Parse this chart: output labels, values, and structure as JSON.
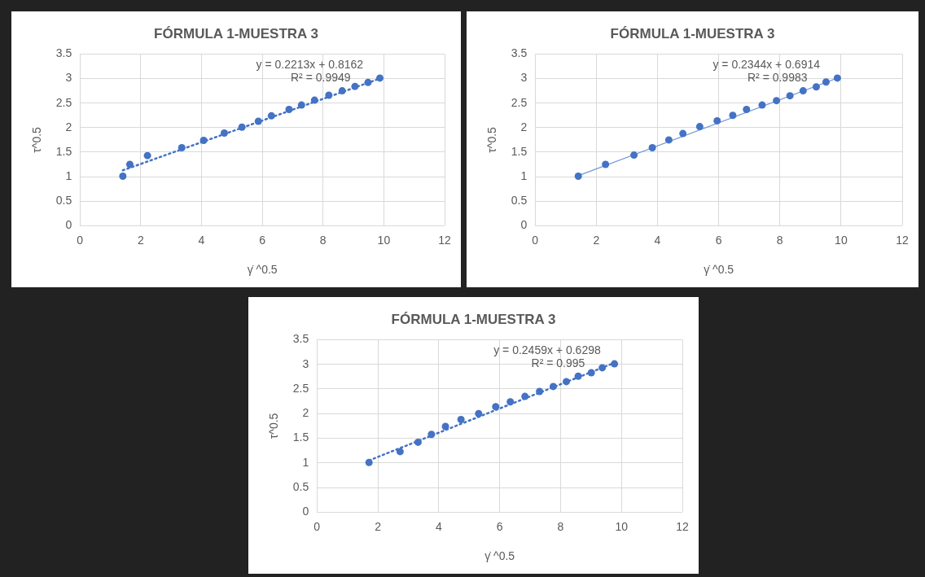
{
  "chart_data": [
    {
      "type": "scatter",
      "title": "FÓRMULA 1-MUESTRA 3",
      "xlabel": "γ̇ ^0.5",
      "ylabel": "τ^0.5",
      "xlim": [
        0,
        12
      ],
      "xticks": [
        0,
        2,
        4,
        6,
        8,
        10,
        12
      ],
      "ylim": [
        0,
        3.5
      ],
      "yticks": [
        0,
        0.5,
        1,
        1.5,
        2,
        2.5,
        3,
        3.5
      ],
      "grid": true,
      "marker": "circle",
      "annotations": [
        "y = 0.2213x + 0.8162",
        "R² = 0.9949"
      ],
      "series": [
        {
          "type": "scatter",
          "color": "#4472c4",
          "x": [
            1.41,
            1.64,
            2.22,
            3.35,
            4.07,
            4.75,
            5.33,
            5.87,
            6.3,
            6.88,
            7.29,
            7.72,
            8.19,
            8.63,
            9.05,
            9.48,
            9.87
          ],
          "values": [
            1.01,
            1.25,
            1.43,
            1.59,
            1.74,
            1.89,
            2.01,
            2.13,
            2.24,
            2.37,
            2.46,
            2.56,
            2.66,
            2.75,
            2.84,
            2.92,
            3.01
          ]
        },
        {
          "type": "line",
          "color": "#4472c4",
          "line_style": "dotted",
          "marker": "none",
          "x": [
            1.41,
            9.87
          ],
          "values": [
            1.13,
            3.0
          ]
        }
      ]
    },
    {
      "type": "scatter",
      "title": "FÓRMULA 1-MUESTRA 3",
      "xlabel": "γ̇ ^0.5",
      "ylabel": "τ^0.5",
      "xlim": [
        0,
        12
      ],
      "xticks": [
        0,
        2,
        4,
        6,
        8,
        10,
        12
      ],
      "ylim": [
        0,
        3.5
      ],
      "yticks": [
        0,
        0.5,
        1,
        1.5,
        2,
        2.5,
        3,
        3.5
      ],
      "grid": true,
      "marker": "circle",
      "annotations": [
        "y = 0.2344x + 0.6914",
        "R² = 0.9983"
      ],
      "series": [
        {
          "type": "scatter",
          "color": "#4472c4",
          "x": [
            1.41,
            2.3,
            3.23,
            3.83,
            4.37,
            4.83,
            5.38,
            5.95,
            6.46,
            6.91,
            7.42,
            7.89,
            8.33,
            8.76,
            9.19,
            9.51,
            9.88
          ],
          "values": [
            1.01,
            1.25,
            1.44,
            1.59,
            1.75,
            1.88,
            2.02,
            2.14,
            2.25,
            2.37,
            2.46,
            2.55,
            2.65,
            2.75,
            2.83,
            2.93,
            3.01
          ]
        },
        {
          "type": "line",
          "color": "#6f95d6",
          "line_style": "solid",
          "marker": "none",
          "x": [
            1.41,
            9.88
          ],
          "values": [
            1.02,
            3.01
          ]
        }
      ]
    },
    {
      "type": "scatter",
      "title": "FÓRMULA 1-MUESTRA 3",
      "xlabel": "γ̇ ^0.5",
      "ylabel": "τ^0.5",
      "xlim": [
        0,
        12
      ],
      "xticks": [
        0,
        2,
        4,
        6,
        8,
        10,
        12
      ],
      "ylim": [
        0,
        3.5
      ],
      "yticks": [
        0,
        0.5,
        1,
        1.5,
        2,
        2.5,
        3,
        3.5
      ],
      "grid": true,
      "marker": "circle",
      "annotations": [
        "y = 0.2459x + 0.6298",
        "R² = 0.995"
      ],
      "series": [
        {
          "type": "scatter",
          "color": "#4472c4",
          "x": [
            1.71,
            2.73,
            3.32,
            3.76,
            4.22,
            4.73,
            5.31,
            5.87,
            6.35,
            6.83,
            7.31,
            7.76,
            8.19,
            8.58,
            9.01,
            9.37,
            9.77
          ],
          "values": [
            1.01,
            1.23,
            1.42,
            1.58,
            1.74,
            1.88,
            2.0,
            2.14,
            2.24,
            2.35,
            2.45,
            2.55,
            2.65,
            2.76,
            2.83,
            2.93,
            3.01
          ]
        },
        {
          "type": "line",
          "color": "#4472c4",
          "line_style": "dotted",
          "marker": "none",
          "x": [
            1.71,
            9.77
          ],
          "values": [
            1.05,
            3.03
          ]
        }
      ]
    }
  ]
}
